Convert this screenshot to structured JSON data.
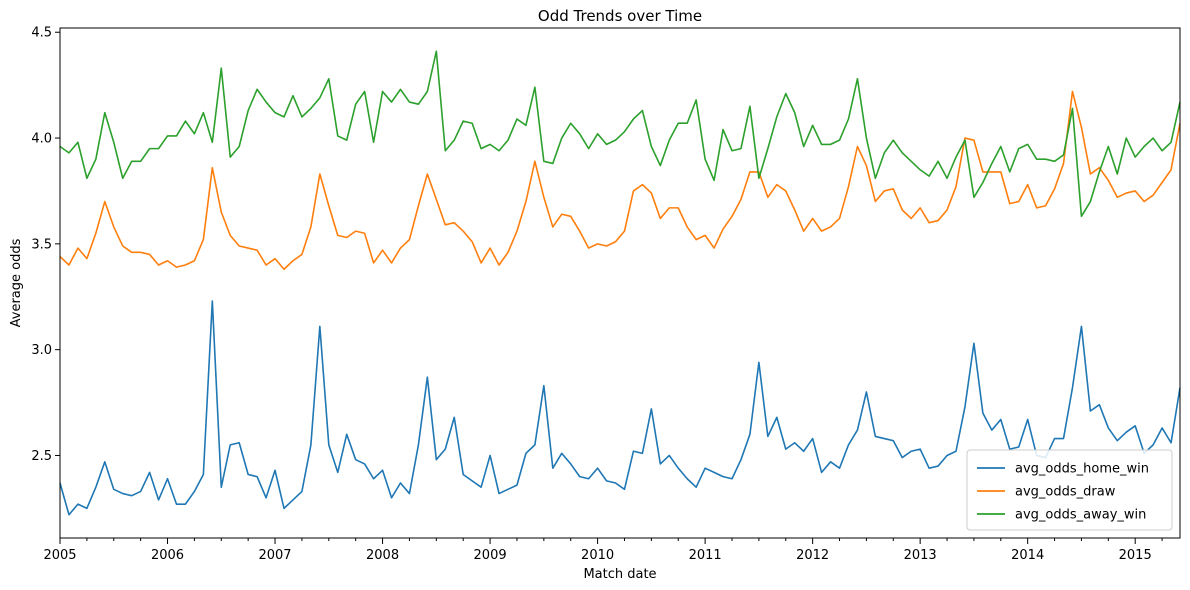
{
  "chart_data": {
    "type": "line",
    "title": "Odd Trends over Time",
    "xlabel": "Match date",
    "ylabel": "Average odds",
    "x_start": "2005-01",
    "x_end": "2015-06",
    "x_ticks": [
      "2005",
      "2006",
      "2007",
      "2008",
      "2009",
      "2010",
      "2011",
      "2012",
      "2013",
      "2014",
      "2015"
    ],
    "y_ticks": [
      "2.5",
      "3.0",
      "3.5",
      "4.0",
      "4.5"
    ],
    "ylim": [
      2.11,
      4.52
    ],
    "grid": false,
    "legend_position": "lower-right",
    "series": [
      {
        "name": "avg_odds_home_win",
        "color": "#1f77b4",
        "values": [
          2.37,
          2.22,
          2.27,
          2.25,
          2.35,
          2.47,
          2.34,
          2.32,
          2.31,
          2.33,
          2.42,
          2.29,
          2.39,
          2.27,
          2.27,
          2.33,
          2.41,
          3.23,
          2.35,
          2.55,
          2.56,
          2.41,
          2.4,
          2.3,
          2.43,
          2.25,
          2.29,
          2.33,
          2.55,
          3.11,
          2.55,
          2.42,
          2.6,
          2.48,
          2.46,
          2.39,
          2.43,
          2.3,
          2.37,
          2.32,
          2.55,
          2.87,
          2.48,
          2.53,
          2.68,
          2.41,
          2.38,
          2.35,
          2.5,
          2.32,
          2.34,
          2.36,
          2.51,
          2.55,
          2.83,
          2.44,
          2.51,
          2.46,
          2.4,
          2.39,
          2.44,
          2.38,
          2.37,
          2.34,
          2.52,
          2.51,
          2.72,
          2.46,
          2.5,
          2.44,
          2.39,
          2.35,
          2.44,
          2.42,
          2.4,
          2.39,
          2.48,
          2.6,
          2.94,
          2.59,
          2.68,
          2.53,
          2.56,
          2.52,
          2.58,
          2.42,
          2.47,
          2.44,
          2.55,
          2.62,
          2.8,
          2.59,
          2.58,
          2.57,
          2.49,
          2.52,
          2.53,
          2.44,
          2.45,
          2.5,
          2.52,
          2.73,
          3.03,
          2.7,
          2.62,
          2.67,
          2.53,
          2.54,
          2.67,
          2.5,
          2.49,
          2.58,
          2.58,
          2.82,
          3.11,
          2.71,
          2.74,
          2.63,
          2.57,
          2.61,
          2.64,
          2.51,
          2.55,
          2.63,
          2.56,
          2.82
        ]
      },
      {
        "name": "avg_odds_draw",
        "color": "#ff7f0e",
        "values": [
          3.44,
          3.4,
          3.48,
          3.43,
          3.55,
          3.7,
          3.58,
          3.49,
          3.46,
          3.46,
          3.45,
          3.4,
          3.42,
          3.39,
          3.4,
          3.42,
          3.52,
          3.86,
          3.65,
          3.54,
          3.49,
          3.48,
          3.47,
          3.4,
          3.43,
          3.38,
          3.42,
          3.45,
          3.58,
          3.83,
          3.68,
          3.54,
          3.53,
          3.56,
          3.55,
          3.41,
          3.47,
          3.41,
          3.48,
          3.52,
          3.68,
          3.83,
          3.71,
          3.59,
          3.6,
          3.56,
          3.51,
          3.41,
          3.48,
          3.4,
          3.46,
          3.56,
          3.7,
          3.89,
          3.72,
          3.58,
          3.64,
          3.63,
          3.56,
          3.48,
          3.5,
          3.49,
          3.51,
          3.56,
          3.75,
          3.78,
          3.74,
          3.62,
          3.67,
          3.67,
          3.58,
          3.52,
          3.54,
          3.48,
          3.57,
          3.63,
          3.71,
          3.84,
          3.84,
          3.72,
          3.78,
          3.75,
          3.66,
          3.56,
          3.62,
          3.56,
          3.58,
          3.62,
          3.77,
          3.96,
          3.87,
          3.7,
          3.75,
          3.76,
          3.66,
          3.62,
          3.67,
          3.6,
          3.61,
          3.66,
          3.77,
          4.0,
          3.99,
          3.84,
          3.84,
          3.84,
          3.69,
          3.7,
          3.78,
          3.67,
          3.68,
          3.76,
          3.88,
          4.22,
          4.05,
          3.83,
          3.86,
          3.8,
          3.72,
          3.74,
          3.75,
          3.7,
          3.73,
          3.79,
          3.85,
          4.07
        ]
      },
      {
        "name": "avg_odds_away_win",
        "color": "#2ca02c",
        "values": [
          3.96,
          3.93,
          3.98,
          3.81,
          3.9,
          4.12,
          3.98,
          3.81,
          3.89,
          3.89,
          3.95,
          3.95,
          4.01,
          4.01,
          4.08,
          4.02,
          4.12,
          3.98,
          4.33,
          3.91,
          3.96,
          4.13,
          4.23,
          4.17,
          4.12,
          4.1,
          4.2,
          4.1,
          4.14,
          4.19,
          4.28,
          4.01,
          3.99,
          4.16,
          4.22,
          3.98,
          4.22,
          4.17,
          4.23,
          4.17,
          4.16,
          4.22,
          4.41,
          3.94,
          3.99,
          4.08,
          4.07,
          3.95,
          3.97,
          3.94,
          3.99,
          4.09,
          4.06,
          4.24,
          3.89,
          3.88,
          4.0,
          4.07,
          4.02,
          3.95,
          4.02,
          3.97,
          3.99,
          4.03,
          4.09,
          4.13,
          3.96,
          3.87,
          3.99,
          4.07,
          4.07,
          4.18,
          3.9,
          3.8,
          4.04,
          3.94,
          3.95,
          4.15,
          3.81,
          3.95,
          4.1,
          4.21,
          4.12,
          3.96,
          4.06,
          3.97,
          3.97,
          3.99,
          4.09,
          4.28,
          4.0,
          3.81,
          3.93,
          3.99,
          3.93,
          3.89,
          3.85,
          3.82,
          3.89,
          3.81,
          3.91,
          3.99,
          3.72,
          3.79,
          3.88,
          3.96,
          3.84,
          3.95,
          3.97,
          3.9,
          3.9,
          3.89,
          3.92,
          4.14,
          3.63,
          3.7,
          3.84,
          3.96,
          3.83,
          4.0,
          3.91,
          3.96,
          4.0,
          3.94,
          3.98,
          4.17
        ]
      }
    ]
  }
}
